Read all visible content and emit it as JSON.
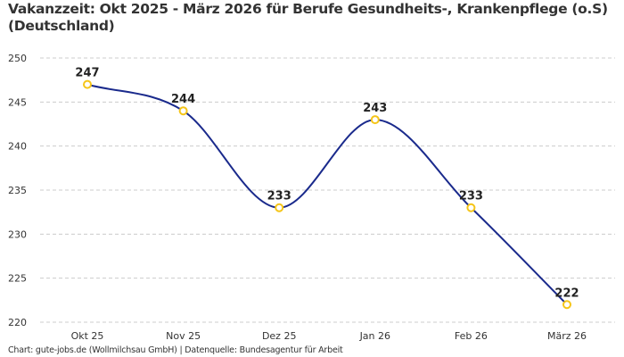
{
  "chart_data": {
    "type": "line",
    "title": "Vakanzzeit: Okt 2025 - März 2026 für Berufe Gesundheits-, Krankenpflege (o.S) (Deutschland)",
    "categories": [
      "Okt 25",
      "Nov 25",
      "Dez 25",
      "Jan 26",
      "Feb 26",
      "März 26"
    ],
    "values": [
      247,
      244,
      233,
      243,
      233,
      222
    ],
    "data_labels": [
      "247",
      "244",
      "233",
      "243",
      "233",
      "222"
    ],
    "xlabel": "",
    "ylabel": "",
    "ylim": [
      220,
      250
    ],
    "yticks": [
      220,
      225,
      230,
      235,
      240,
      245,
      250
    ],
    "grid": true,
    "interpolation": "smooth",
    "colors": {
      "line": "#1a2a8c",
      "marker": "#f5c518",
      "grid": "#cccccc"
    }
  },
  "footer": "Chart: gute-jobs.de (Wollmilchsau GmbH) | Datenquelle: Bundesagentur für Arbeit"
}
